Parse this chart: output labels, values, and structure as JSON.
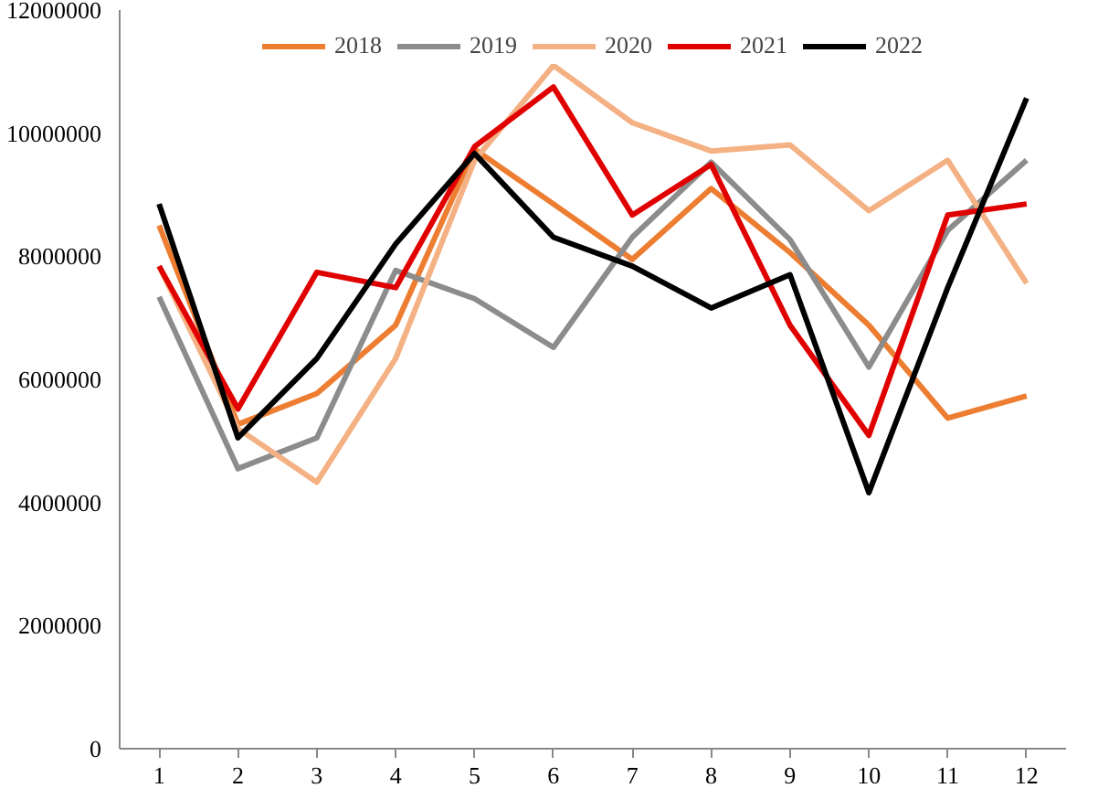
{
  "chart_data": {
    "type": "line",
    "x": [
      1,
      2,
      3,
      4,
      5,
      6,
      7,
      8,
      9,
      10,
      11,
      12
    ],
    "xlim": [
      0.5,
      12.5
    ],
    "xticks": [
      1,
      2,
      3,
      4,
      5,
      6,
      7,
      8,
      9,
      10,
      11,
      12
    ],
    "ylim": [
      0,
      12000000
    ],
    "yticks": [
      0,
      2000000,
      4000000,
      6000000,
      8000000,
      10000000,
      12000000
    ],
    "grid": false,
    "legend": "top",
    "marker": "none",
    "line_style": "solid",
    "series": [
      {
        "name": "2018",
        "color": "#ed7d31",
        "values": [
          8500000,
          5270000,
          5770000,
          6880000,
          9740000,
          8850000,
          7950000,
          9100000,
          8060000,
          6880000,
          5370000,
          5730000
        ]
      },
      {
        "name": "2019",
        "color": "#8c8c8c",
        "values": [
          7340000,
          4550000,
          5050000,
          7770000,
          7310000,
          6520000,
          8310000,
          9530000,
          8270000,
          6200000,
          8420000,
          9560000
        ]
      },
      {
        "name": "2020",
        "color": "#f4b183",
        "values": [
          7840000,
          5200000,
          4330000,
          6340000,
          9560000,
          11100000,
          10170000,
          9710000,
          9810000,
          8740000,
          9560000,
          7560000
        ]
      },
      {
        "name": "2021",
        "color": "#e00000",
        "values": [
          7840000,
          5520000,
          7740000,
          7490000,
          9780000,
          10750000,
          8670000,
          9490000,
          6880000,
          5090000,
          8670000,
          8850000
        ]
      },
      {
        "name": "2022",
        "color": "#000000",
        "values": [
          8850000,
          5050000,
          6340000,
          8200000,
          9670000,
          8310000,
          7840000,
          7160000,
          7700000,
          4160000,
          7490000,
          10570000
        ]
      }
    ]
  }
}
